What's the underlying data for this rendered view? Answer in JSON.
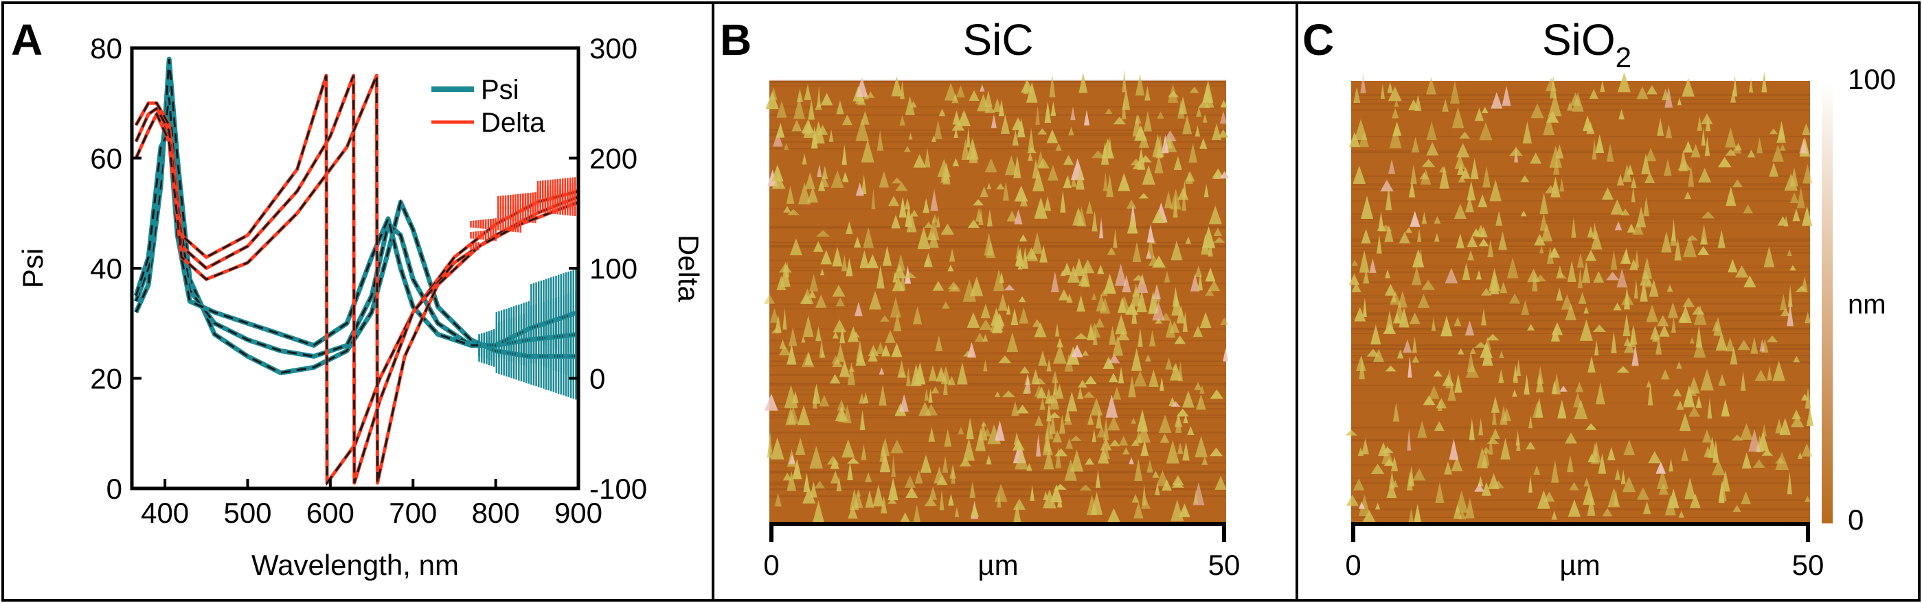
{
  "panels": [
    {
      "letter": "A"
    },
    {
      "letter": "B",
      "title": "SiC",
      "scalebar": {
        "start": "0",
        "end": "50",
        "unit": "µm"
      }
    },
    {
      "letter": "C",
      "title_base": "SiO",
      "title_sub": "2",
      "scalebar": {
        "start": "0",
        "end": "50",
        "unit": "µm"
      }
    }
  ],
  "colorbar": {
    "max_label": "100",
    "min_label": "0",
    "unit": "nm",
    "colors": [
      "#b86a1c",
      "#ffffff"
    ]
  },
  "colors": {
    "psi": "#1b8a95",
    "delta": "#ff3a1f",
    "fit": "#1a1a1a",
    "afm_base": "#b4641c",
    "afm_grain": "#d2c25a"
  },
  "chart_data": {
    "type": "line",
    "xlabel": "Wavelength, nm",
    "ylabel": "Psi",
    "y2label": "Delta",
    "xlim": [
      360,
      900
    ],
    "ylim": [
      0,
      80
    ],
    "y2lim": [
      -100,
      300
    ],
    "xticks": [
      "400",
      "500",
      "600",
      "700",
      "800",
      "900"
    ],
    "yticks": [
      "0",
      "20",
      "40",
      "60",
      "80"
    ],
    "y2ticks": [
      "-100",
      "0",
      "100",
      "200",
      "300"
    ],
    "legend": {
      "position": "top-right",
      "entries": [
        "Psi",
        "Delta"
      ]
    },
    "series": [
      {
        "name": "Psi",
        "axis": "left",
        "curves": [
          {
            "x": [
              365,
              380,
              395,
              405,
              415,
              430,
              460,
              500,
              540,
              580,
              620,
              650,
              670,
              685,
              700,
              730,
              770,
              800,
              840,
              900
            ],
            "y": [
              32,
              37,
              55,
              78,
              60,
              38,
              28,
              24,
              21,
              22,
              25,
              32,
              43,
              52,
              47,
              33,
              27,
              25,
              24,
              24
            ]
          },
          {
            "x": [
              365,
              380,
              395,
              405,
              415,
              430,
              460,
              500,
              540,
              580,
              620,
              650,
              670,
              685,
              700,
              730,
              770,
              800,
              840,
              900
            ],
            "y": [
              34,
              40,
              60,
              71,
              52,
              36,
              30,
              27,
              25,
              24,
              26,
              35,
              48,
              46,
              38,
              30,
              26,
              26,
              27,
              28
            ]
          },
          {
            "x": [
              365,
              380,
              395,
              405,
              415,
              430,
              460,
              500,
              540,
              580,
              620,
              650,
              670,
              685,
              700,
              730,
              770,
              800,
              840,
              900
            ],
            "y": [
              35,
              42,
              62,
              65,
              46,
              34,
              32,
              30,
              28,
              26,
              30,
              42,
              49,
              40,
              33,
              28,
              26,
              26,
              29,
              32
            ]
          }
        ]
      },
      {
        "name": "Delta",
        "axis": "right",
        "curves": [
          {
            "x": [
              365,
              380,
              390,
              405,
              420,
              450,
              500,
              560,
              595,
              596,
              630,
              660,
              700,
              750,
              800,
              850,
              900
            ],
            "y": [
              230,
              250,
              250,
              230,
              130,
              110,
              130,
              190,
              275,
              -95,
              -60,
              0,
              60,
              110,
              140,
              160,
              170
            ]
          },
          {
            "x": [
              365,
              380,
              390,
              405,
              420,
              450,
              500,
              560,
              600,
              628,
              629,
              660,
              700,
              750,
              800,
              850,
              900
            ],
            "y": [
              215,
              240,
              245,
              225,
              120,
              100,
              120,
              170,
              220,
              275,
              -95,
              -20,
              60,
              105,
              130,
              150,
              165
            ]
          },
          {
            "x": [
              365,
              380,
              390,
              405,
              420,
              450,
              500,
              560,
              620,
              656,
              657,
              690,
              730,
              780,
              830,
              900
            ],
            "y": [
              200,
              225,
              240,
              215,
              110,
              90,
              105,
              150,
              210,
              275,
              -95,
              20,
              85,
              120,
              140,
              160
            ]
          }
        ]
      }
    ]
  }
}
